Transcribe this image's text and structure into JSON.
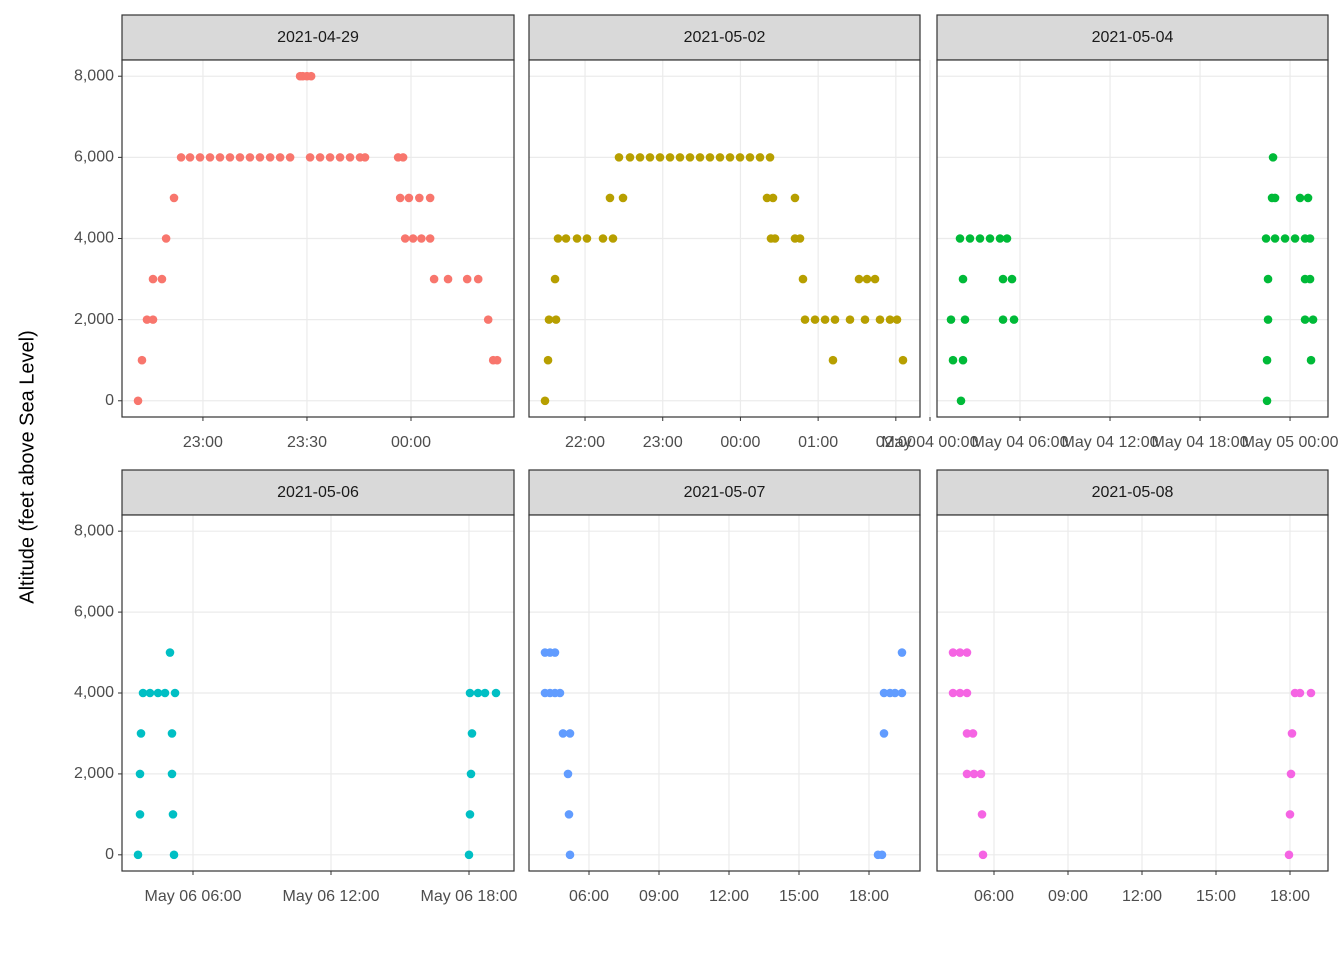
{
  "y_label": "Altitude (feet above Sea Level)",
  "chart_data": [
    {
      "type": "scatter",
      "title": "2021-04-29",
      "color": "#F8766D",
      "x": [
        22.688,
        22.707,
        22.731,
        22.76,
        22.76,
        22.803,
        22.823,
        22.861,
        22.895,
        22.938,
        22.986,
        23.034,
        23.082,
        23.13,
        23.178,
        23.226,
        23.274,
        23.323,
        23.371,
        23.419,
        23.467,
        23.48,
        23.5,
        23.52,
        23.515,
        23.563,
        23.611,
        23.659,
        23.707,
        23.755,
        23.779,
        23.938,
        23.962,
        23.948,
        23.99,
        24.04,
        24.092,
        23.972,
        24.01,
        24.05,
        24.092,
        24.111,
        24.178,
        24.27,
        24.323,
        24.371,
        24.395,
        24.414
      ],
      "values": [
        0,
        1000,
        2000,
        2000,
        3000,
        3000,
        4000,
        5000,
        6000,
        6000,
        6000,
        6000,
        6000,
        6000,
        6000,
        6000,
        6000,
        6000,
        6000,
        6000,
        8000,
        8000,
        8000,
        8000,
        6000,
        6000,
        6000,
        6000,
        6000,
        6000,
        6000,
        6000,
        6000,
        5000,
        5000,
        5000,
        5000,
        4000,
        4000,
        4000,
        4000,
        3000,
        3000,
        3000,
        3000,
        2000,
        1000,
        1000
      ],
      "xlim": [
        22.611,
        24.495
      ],
      "xticks": [
        {
          "value": 23,
          "label": "23:00"
        },
        {
          "value": 23.5,
          "label": "23:30"
        },
        {
          "value": 24,
          "label": "00:00"
        }
      ],
      "ylim": [
        -400,
        8400
      ],
      "yticks": [
        0,
        {
          "value": 2000,
          "label": "2,000"
        },
        {
          "value": 4000,
          "label": "4,000"
        },
        {
          "value": 6000,
          "label": "6,000"
        },
        {
          "value": 8000,
          "label": "8,000"
        }
      ],
      "grid": true
    },
    {
      "type": "scatter",
      "title": "2021-05-02",
      "color": "#B79F00",
      "x": [
        21.485,
        21.524,
        21.536,
        21.627,
        21.614,
        21.652,
        21.755,
        21.897,
        22.025,
        22.231,
        22.36,
        22.321,
        22.489,
        22.437,
        22.579,
        22.708,
        22.836,
        22.965,
        23.094,
        23.222,
        23.351,
        23.48,
        23.608,
        23.737,
        23.866,
        23.995,
        24.123,
        24.252,
        24.381,
        24.342,
        24.419,
        24.393,
        24.445,
        24.702,
        24.702,
        24.767,
        24.805,
        24.831,
        24.96,
        25.089,
        25.217,
        25.41,
        25.191,
        25.526,
        25.629,
        25.732,
        25.603,
        25.796,
        25.925,
        26.015,
        26.092
      ],
      "values": [
        0,
        1000,
        2000,
        2000,
        3000,
        4000,
        4000,
        4000,
        4000,
        4000,
        4000,
        5000,
        5000,
        6000,
        6000,
        6000,
        6000,
        6000,
        6000,
        6000,
        6000,
        6000,
        6000,
        6000,
        6000,
        6000,
        6000,
        6000,
        6000,
        5000,
        5000,
        4000,
        4000,
        5000,
        4000,
        4000,
        3000,
        2000,
        2000,
        2000,
        2000,
        2000,
        1000,
        3000,
        3000,
        3000,
        2000,
        2000,
        2000,
        2000,
        1000
      ],
      "xlim": [
        21.279,
        26.311
      ],
      "xticks": [
        {
          "value": 22,
          "label": "22:00"
        },
        {
          "value": 23,
          "label": "23:00"
        },
        {
          "value": 24,
          "label": "00:00"
        },
        {
          "value": 25,
          "label": "01:00"
        },
        {
          "value": 26,
          "label": "02:00"
        }
      ],
      "ylim": [
        -400,
        8400
      ],
      "yticks": [
        0,
        {
          "value": 2000,
          "label": "2,000"
        },
        {
          "value": 4000,
          "label": "4,000"
        },
        {
          "value": 6000,
          "label": "6,000"
        },
        {
          "value": 8000,
          "label": "8,000"
        }
      ],
      "grid": true
    },
    {
      "type": "scatter",
      "title": "2021-05-04",
      "color": "#00BA38",
      "x": [
        1.533,
        2.2,
        1.4,
        2.333,
        2.2,
        2.067,
        2.0,
        2.667,
        3.333,
        4.0,
        4.667,
        5.133,
        4.867,
        5.467,
        4.867,
        5.6,
        22.467,
        22.467,
        22.533,
        22.533,
        22.4,
        23.0,
        23.667,
        24.333,
        25.0,
        25.333,
        22.867,
        22.8,
        23.0,
        24.667,
        25.2,
        25.0,
        25.333,
        25.0,
        25.533,
        25.4
      ],
      "values": [
        1000,
        1000,
        2000,
        2000,
        3000,
        0,
        4000,
        4000,
        4000,
        4000,
        4000,
        4000,
        3000,
        3000,
        2000,
        2000,
        0,
        1000,
        2000,
        3000,
        4000,
        4000,
        4000,
        4000,
        4000,
        4000,
        6000,
        5000,
        5000,
        5000,
        5000,
        3000,
        3000,
        2000,
        2000,
        1000
      ],
      "xlim": [
        0.467,
        26.53
      ],
      "xticks": [
        {
          "value": 0,
          "label": "May 04 00:00"
        },
        {
          "value": 6,
          "label": "May 04 06:00"
        },
        {
          "value": 12,
          "label": "May 04 12:00"
        },
        {
          "value": 18,
          "label": "May 04 18:00"
        },
        {
          "value": 24,
          "label": "May 05 00:00"
        }
      ],
      "ylim": [
        -400,
        8400
      ],
      "yticks": [
        0,
        {
          "value": 2000,
          "label": "2,000"
        },
        {
          "value": 4000,
          "label": "4,000"
        },
        {
          "value": 6000,
          "label": "6,000"
        },
        {
          "value": 8000,
          "label": "8,000"
        }
      ],
      "grid": true
    },
    {
      "type": "scatter",
      "title": "2021-05-06",
      "color": "#00BFC4",
      "x": [
        3.609,
        3.696,
        3.696,
        3.739,
        3.826,
        4.13,
        4.478,
        4.783,
        5.217,
        5.0,
        5.087,
        5.087,
        5.13,
        5.174,
        18.0,
        18.043,
        18.087,
        18.13,
        18.043,
        18.391,
        18.696,
        19.174
      ],
      "values": [
        0,
        1000,
        2000,
        3000,
        4000,
        4000,
        4000,
        4000,
        4000,
        5000,
        3000,
        2000,
        1000,
        0,
        0,
        1000,
        2000,
        3000,
        4000,
        4000,
        4000,
        4000
      ],
      "xlim": [
        2.913,
        19.957
      ],
      "xticks": [
        {
          "value": 6,
          "label": "May 06 06:00"
        },
        {
          "value": 12,
          "label": "May 06 12:00"
        },
        {
          "value": 18,
          "label": "May 06 18:00"
        }
      ],
      "ylim": [
        -400,
        8400
      ],
      "yticks": [
        0,
        {
          "value": 2000,
          "label": "2,000"
        },
        {
          "value": 4000,
          "label": "4,000"
        },
        {
          "value": 6000,
          "label": "6,000"
        },
        {
          "value": 8000,
          "label": "8,000"
        }
      ],
      "grid": true
    },
    {
      "type": "scatter",
      "title": "2021-05-07",
      "color": "#619CFF",
      "x": [
        4.114,
        4.329,
        4.543,
        4.114,
        4.329,
        4.543,
        4.757,
        4.886,
        5.186,
        5.1,
        5.143,
        5.186,
        18.386,
        18.557,
        18.643,
        18.643,
        18.9,
        19.114,
        19.414,
        19.414
      ],
      "values": [
        5000,
        5000,
        5000,
        4000,
        4000,
        4000,
        4000,
        3000,
        3000,
        2000,
        1000,
        0,
        0,
        0,
        3000,
        4000,
        4000,
        4000,
        4000,
        5000
      ],
      "xlim": [
        3.429,
        20.186
      ],
      "xticks": [
        {
          "value": 6,
          "label": "06:00"
        },
        {
          "value": 9,
          "label": "09:00"
        },
        {
          "value": 12,
          "label": "12:00"
        },
        {
          "value": 15,
          "label": "15:00"
        },
        {
          "value": 18,
          "label": "18:00"
        }
      ],
      "ylim": [
        -400,
        8400
      ],
      "yticks": [
        0,
        {
          "value": 2000,
          "label": "2,000"
        },
        {
          "value": 4000,
          "label": "4,000"
        },
        {
          "value": 6000,
          "label": "6,000"
        },
        {
          "value": 8000,
          "label": "8,000"
        }
      ],
      "grid": true
    },
    {
      "type": "scatter",
      "title": "2021-05-08",
      "color": "#F564E3",
      "x": [
        4.338,
        4.622,
        4.905,
        4.338,
        4.622,
        4.905,
        4.905,
        5.149,
        4.905,
        5.189,
        5.473,
        5.514,
        5.554,
        17.959,
        18.0,
        18.041,
        18.081,
        18.203,
        18.405,
        18.851
      ],
      "values": [
        5000,
        5000,
        5000,
        4000,
        4000,
        4000,
        3000,
        3000,
        2000,
        2000,
        2000,
        1000,
        0,
        0,
        1000,
        2000,
        3000,
        4000,
        4000,
        4000
      ],
      "xlim": [
        3.689,
        19.541
      ],
      "xticks": [
        {
          "value": 6,
          "label": "06:00"
        },
        {
          "value": 9,
          "label": "09:00"
        },
        {
          "value": 12,
          "label": "12:00"
        },
        {
          "value": 15,
          "label": "15:00"
        },
        {
          "value": 18,
          "label": "18:00"
        }
      ],
      "ylim": [
        -400,
        8400
      ],
      "yticks": [
        0,
        {
          "value": 2000,
          "label": "2,000"
        },
        {
          "value": 4000,
          "label": "4,000"
        },
        {
          "value": 6000,
          "label": "6,000"
        },
        {
          "value": 8000,
          "label": "8,000"
        }
      ],
      "grid": true
    }
  ]
}
